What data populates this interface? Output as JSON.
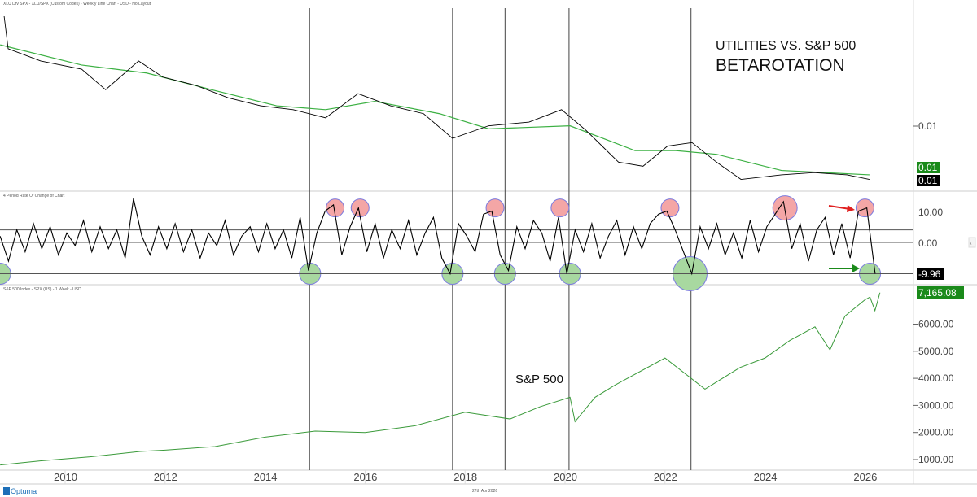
{
  "header": {
    "ratio_panel_title": "XLU Drv SPX - XLU/SPX (Custom Codes) - Weekly Line Chart - USD - No Layout",
    "roc_panel_title": "4 Period Rate Of Change of Chart",
    "spx_panel_title": "S&P 500 Index - SPX (US) - 1 Week - USD"
  },
  "annotations": {
    "title_line1": "UTILITIES VS. S&P 500",
    "title_line2": "BETAROTATION",
    "spx_label": "S&P 500"
  },
  "footer": {
    "logo": "Optuma",
    "date": "27th Apr 2026"
  },
  "colors": {
    "price": "#000000",
    "ma": "#3cb043",
    "spx": "#3a9a3a",
    "red_circle": "#f4a6a6",
    "green_circle": "#a8d8a0",
    "tag_green": "#1a8a1a",
    "tag_black": "#000000"
  },
  "chart_data": [
    {
      "type": "line",
      "panel": "ratio",
      "y_scale": "log",
      "y_ticks": [
        "0.01"
      ],
      "last_value_tags": [
        "0.01",
        "0.01"
      ],
      "series": [
        {
          "x": [
            2008.78,
            2008.86,
            2009.51,
            2010.33,
            2010.81,
            2011.47,
            2011.95,
            2012.61,
            2013.26,
            2013.91,
            2014.56,
            2015.21,
            2015.86,
            2016.51,
            2017.17,
            2017.75,
            2018.47,
            2019.28,
            2019.93,
            2020.42,
            2021.07,
            2021.56,
            2022.05,
            2022.54,
            2023.03,
            2023.52,
            2024.33,
            2024.98,
            2025.64,
            2026.09
          ],
          "y": [
            0.04,
            0.0307,
            0.0278,
            0.026,
            0.022,
            0.0278,
            0.0244,
            0.0228,
            0.0206,
            0.0193,
            0.0187,
            0.0175,
            0.0213,
            0.0193,
            0.0181,
            0.0148,
            0.0164,
            0.0169,
            0.0187,
            0.0158,
            0.0122,
            0.0118,
            0.0139,
            0.0143,
            0.0122,
            0.0106,
            0.011,
            0.0112,
            0.011,
            0.0106
          ]
        },
        {
          "x": [
            2008.7,
            2010.33,
            2011.63,
            2012.93,
            2014.23,
            2015.21,
            2016.19,
            2017.49,
            2018.47,
            2020.1,
            2021.4,
            2022.21,
            2023.03,
            2024.33,
            2026.09
          ],
          "y": [
            0.0317,
            0.0269,
            0.0252,
            0.022,
            0.0193,
            0.0187,
            0.02,
            0.0181,
            0.016,
            0.0164,
            0.0134,
            0.0134,
            0.013,
            0.0114,
            0.011
          ]
        }
      ]
    },
    {
      "type": "line",
      "panel": "roc",
      "y_ticks": [
        "10.00",
        "0.00"
      ],
      "reference_lines": [
        10,
        4,
        0,
        -10
      ],
      "last_value_tag": "-9.96",
      "x_start": 2008.7,
      "x_step_years": 0.1667,
      "values": [
        2,
        -6,
        4,
        -3,
        6,
        -2,
        5,
        -4,
        3,
        -1,
        7,
        -3,
        5,
        -2,
        4,
        -5,
        14,
        2,
        -4,
        5,
        -2,
        6,
        -3,
        4,
        -5,
        3,
        -1,
        7,
        -4,
        2,
        5,
        -3,
        6,
        -2,
        4,
        -5,
        8,
        -9,
        3,
        10,
        12,
        -4,
        5,
        11,
        -3,
        6,
        -5,
        4,
        -2,
        7,
        -4,
        3,
        8,
        -5,
        -10,
        6,
        2,
        -3,
        9,
        10,
        -4,
        -9,
        5,
        -2,
        7,
        3,
        -6,
        8,
        -10,
        4,
        -3,
        6,
        -5,
        2,
        7,
        -4,
        5,
        -2,
        6,
        9,
        10,
        4,
        -3,
        -10,
        5,
        -2,
        6,
        -4,
        3,
        -5,
        7,
        -3,
        5,
        9,
        13,
        -2,
        6,
        -6,
        4,
        8,
        -4,
        6,
        -5,
        10,
        11,
        -10
      ],
      "peak_markers": [
        2015.4,
        2015.9,
        2018.6,
        2019.9,
        2022.1,
        2024.4,
        2026.0
      ],
      "trough_markers": [
        2008.7,
        2014.9,
        2017.75,
        2018.8,
        2020.1,
        2022.5,
        2026.1
      ]
    },
    {
      "type": "line",
      "panel": "spx",
      "y_ticks": [
        "1000.00",
        "2000.00",
        "3000.00",
        "4000.00",
        "5000.00",
        "6000.00"
      ],
      "ylim": [
        1000,
        7165.08
      ],
      "last_value_tag": "7,165.08",
      "x": [
        2008.7,
        2009.5,
        2010.5,
        2011.5,
        2012,
        2013,
        2014,
        2015,
        2016,
        2017,
        2018,
        2018.9,
        2019.5,
        2020.1,
        2020.2,
        2020.6,
        2021,
        2022,
        2022.8,
        2023.5,
        2024,
        2024.5,
        2025,
        2025.3,
        2025.6,
        2026,
        2026.1,
        2026.2,
        2026.3
      ],
      "y": [
        800,
        950,
        1100,
        1300,
        1350,
        1480,
        1830,
        2050,
        2000,
        2250,
        2750,
        2500,
        2950,
        3300,
        2400,
        3300,
        3750,
        4750,
        3600,
        4400,
        4750,
        5400,
        5900,
        5050,
        6300,
        6900,
        7000,
        6500,
        7165
      ]
    }
  ],
  "x_axis": {
    "ticks": [
      "2010",
      "2012",
      "2014",
      "2016",
      "2018",
      "2020",
      "2022",
      "2024",
      "2026"
    ]
  },
  "vertical_markers": [
    2014.89,
    2017.75,
    2018.8,
    2020.08,
    2022.52
  ]
}
